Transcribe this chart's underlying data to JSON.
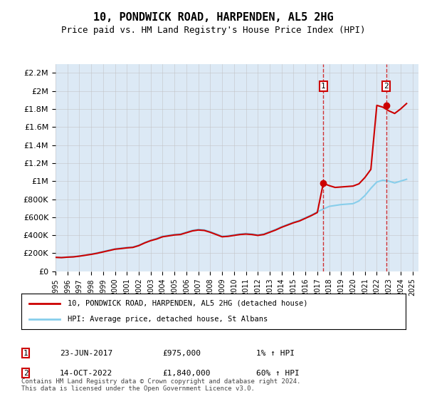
{
  "title": "10, PONDWICK ROAD, HARPENDEN, AL5 2HG",
  "subtitle": "Price paid vs. HM Land Registry's House Price Index (HPI)",
  "background_color": "#dce9f5",
  "plot_bg_color": "#dce9f5",
  "ylim": [
    0,
    2300000
  ],
  "yticks": [
    0,
    200000,
    400000,
    600000,
    800000,
    1000000,
    1200000,
    1400000,
    1600000,
    1800000,
    2000000,
    2200000
  ],
  "ytick_labels": [
    "£0",
    "£200K",
    "£400K",
    "£600K",
    "£800K",
    "£1M",
    "£1.2M",
    "£1.4M",
    "£1.6M",
    "£1.8M",
    "£2M",
    "£2.2M"
  ],
  "xlim_start": 1995,
  "xlim_end": 2025.5,
  "hpi_color": "#87CEEB",
  "price_color": "#cc0000",
  "marker1_x": 2017.5,
  "marker1_y": 975000,
  "marker2_x": 2022.8,
  "marker2_y": 1840000,
  "legend_label1": "10, PONDWICK ROAD, HARPENDEN, AL5 2HG (detached house)",
  "legend_label2": "HPI: Average price, detached house, St Albans",
  "annotation1_date": "23-JUN-2017",
  "annotation1_price": "£975,000",
  "annotation1_hpi": "1% ↑ HPI",
  "annotation2_date": "14-OCT-2022",
  "annotation2_price": "£1,840,000",
  "annotation2_hpi": "60% ↑ HPI",
  "footer": "Contains HM Land Registry data © Crown copyright and database right 2024.\nThis data is licensed under the Open Government Licence v3.0.",
  "hpi_years": [
    1995,
    1995.5,
    1996,
    1996.5,
    1997,
    1997.5,
    1998,
    1998.5,
    1999,
    1999.5,
    2000,
    2000.5,
    2001,
    2001.5,
    2002,
    2002.5,
    2003,
    2003.5,
    2004,
    2004.5,
    2005,
    2005.5,
    2006,
    2006.5,
    2007,
    2007.5,
    2008,
    2008.5,
    2009,
    2009.5,
    2010,
    2010.5,
    2011,
    2011.5,
    2012,
    2012.5,
    2013,
    2013.5,
    2014,
    2014.5,
    2015,
    2015.5,
    2016,
    2016.5,
    2017,
    2017.5,
    2018,
    2018.5,
    2019,
    2019.5,
    2020,
    2020.5,
    2021,
    2021.5,
    2022,
    2022.5,
    2023,
    2023.5,
    2024,
    2024.5
  ],
  "hpi_values": [
    155000,
    153000,
    158000,
    162000,
    170000,
    180000,
    192000,
    205000,
    220000,
    235000,
    250000,
    258000,
    265000,
    270000,
    290000,
    320000,
    345000,
    365000,
    390000,
    400000,
    410000,
    415000,
    435000,
    455000,
    465000,
    460000,
    440000,
    415000,
    390000,
    395000,
    405000,
    415000,
    420000,
    415000,
    405000,
    415000,
    440000,
    465000,
    495000,
    520000,
    545000,
    565000,
    595000,
    625000,
    660000,
    690000,
    720000,
    730000,
    740000,
    745000,
    750000,
    780000,
    840000,
    920000,
    990000,
    1010000,
    1000000,
    980000,
    1000000,
    1020000
  ],
  "price_years": [
    1995,
    1995.5,
    1996,
    1996.5,
    1997,
    1997.5,
    1998,
    1998.5,
    1999,
    1999.5,
    2000,
    2000.5,
    2001,
    2001.5,
    2002,
    2002.5,
    2003,
    2003.5,
    2004,
    2004.5,
    2005,
    2005.5,
    2006,
    2006.5,
    2007,
    2007.5,
    2008,
    2008.5,
    2009,
    2009.5,
    2010,
    2010.5,
    2011,
    2011.5,
    2012,
    2012.5,
    2013,
    2013.5,
    2014,
    2014.5,
    2015,
    2015.5,
    2016,
    2016.5,
    2017,
    2017.5,
    2018,
    2018.5,
    2019,
    2019.5,
    2020,
    2020.5,
    2021,
    2021.5,
    2022,
    2022.5,
    2023,
    2023.5,
    2024,
    2024.5
  ],
  "price_values": [
    155000,
    152000,
    157000,
    160000,
    168000,
    178000,
    188000,
    200000,
    215000,
    230000,
    245000,
    252000,
    260000,
    265000,
    285000,
    315000,
    340000,
    358000,
    383000,
    393000,
    403000,
    408000,
    428000,
    448000,
    458000,
    453000,
    433000,
    408000,
    383000,
    388000,
    398000,
    408000,
    413000,
    408000,
    398000,
    408000,
    433000,
    458000,
    488000,
    513000,
    538000,
    558000,
    588000,
    618000,
    652000,
    975000,
    950000,
    930000,
    935000,
    940000,
    945000,
    970000,
    1040000,
    1130000,
    1840000,
    1820000,
    1780000,
    1750000,
    1800000,
    1860000
  ]
}
